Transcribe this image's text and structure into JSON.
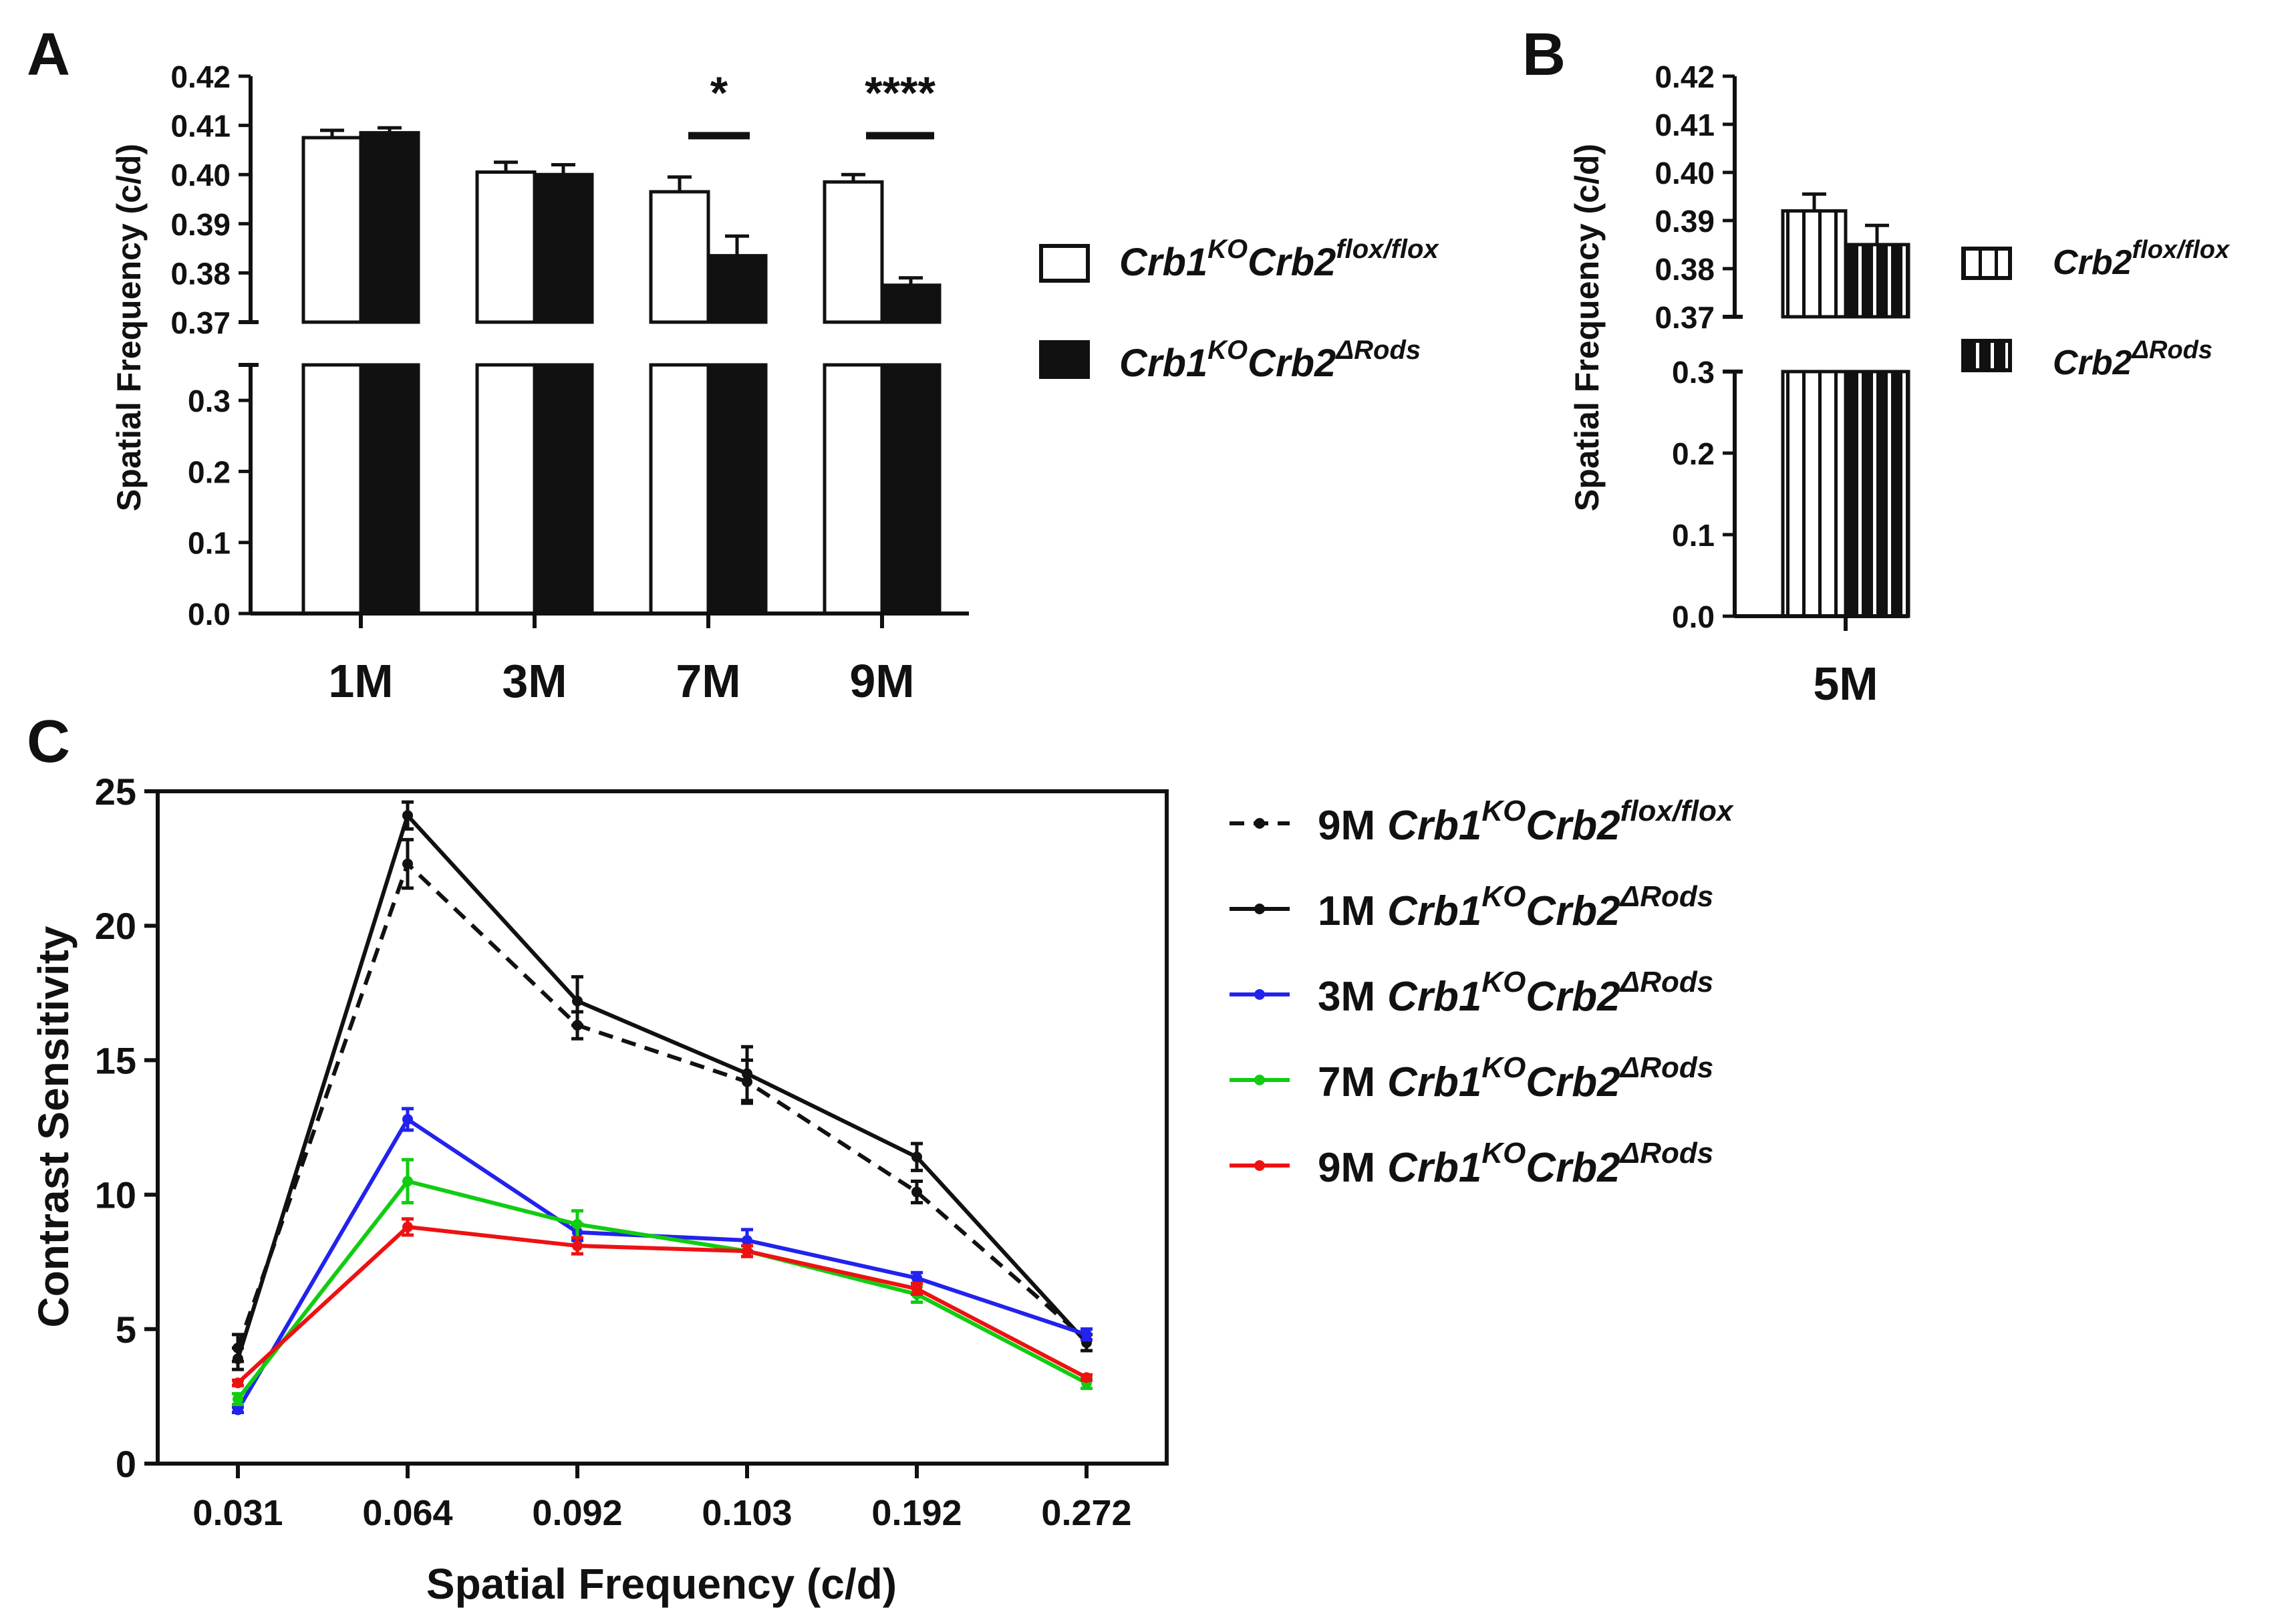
{
  "panel_labels": {
    "a": "A",
    "b": "B",
    "c": "C"
  },
  "significance": {
    "m7": "*",
    "m9": "****"
  },
  "colors": {
    "black": "#111111",
    "blue": "#2222ee",
    "green": "#11cc11",
    "red": "#ee1111",
    "white": "#ffffff"
  },
  "chart_data": [
    {
      "panel": "A",
      "type": "bar",
      "ylabel": "Spatial Frequency (c/d)",
      "categories": [
        "1M",
        "3M",
        "7M",
        "9M"
      ],
      "axis_break": true,
      "ylim_lower": [
        0,
        0.35
      ],
      "ylim_upper": [
        0.37,
        0.42
      ],
      "yticks_lower": [
        "0.0",
        "0.1",
        "0.2",
        "0.3"
      ],
      "yticks_upper": [
        "0.37",
        "0.38",
        "0.39",
        "0.40",
        "0.41",
        "0.42"
      ],
      "series": [
        {
          "name_base1": "Crb1",
          "name_sup1": "KO",
          "name_base2": "Crb2",
          "name_sup2": "flox/flox",
          "fill": "white",
          "values": [
            0.4075,
            0.4005,
            0.3965,
            0.3985
          ],
          "errors": [
            0.0015,
            0.002,
            0.003,
            0.0015
          ]
        },
        {
          "name_base1": "Crb1",
          "name_sup1": "KO",
          "name_base2": "Crb2",
          "name_sup2": "ΔRods",
          "fill": "black",
          "values": [
            0.4085,
            0.4,
            0.3835,
            0.3775
          ],
          "errors": [
            0.001,
            0.002,
            0.004,
            0.0015
          ]
        }
      ]
    },
    {
      "panel": "B",
      "type": "bar",
      "ylabel": "Spatial Frequency (c/d)",
      "categories": [
        "5M"
      ],
      "axis_break": true,
      "ylim_lower": [
        0,
        0.3
      ],
      "ylim_upper": [
        0.37,
        0.42
      ],
      "yticks_lower": [
        "0.0",
        "0.1",
        "0.2",
        "0.3"
      ],
      "yticks_upper": [
        "0.37",
        "0.38",
        "0.39",
        "0.40",
        "0.41",
        "0.42"
      ],
      "series": [
        {
          "name_base": "Crb2",
          "name_sup": "flox/flox",
          "fill": "white-striped",
          "values": [
            0.392
          ],
          "errors": [
            0.0035
          ]
        },
        {
          "name_base": "Crb2",
          "name_sup": "ΔRods",
          "fill": "black-striped",
          "values": [
            0.385
          ],
          "errors": [
            0.004
          ]
        }
      ]
    },
    {
      "panel": "C",
      "type": "line",
      "xlabel": "Spatial Frequency (c/d)",
      "ylabel": "Contrast Sensitivity",
      "x": [
        "0.031",
        "0.064",
        "0.092",
        "0.103",
        "0.192",
        "0.272"
      ],
      "ylim": [
        0,
        25
      ],
      "yticks": [
        "0",
        "5",
        "10",
        "15",
        "20",
        "25"
      ],
      "series": [
        {
          "prefix": "9M",
          "name_base1": "Crb1",
          "name_sup1": "KO",
          "name_base2": "Crb2",
          "name_sup2": "flox/flox",
          "color": "#111111",
          "dashed": true,
          "values": [
            4.3,
            22.3,
            16.3,
            14.2,
            10.1,
            4.6
          ],
          "errors": [
            0.5,
            0.9,
            0.5,
            0.8,
            0.4,
            0.4
          ]
        },
        {
          "prefix": "1M",
          "name_base1": "Crb1",
          "name_sup1": "KO",
          "name_base2": "Crb2",
          "name_sup2": "ΔRods",
          "color": "#111111",
          "dashed": false,
          "values": [
            3.9,
            24.1,
            17.2,
            14.5,
            11.4,
            4.5
          ],
          "errors": [
            0.4,
            0.5,
            0.9,
            1.0,
            0.5,
            0.3
          ]
        },
        {
          "prefix": "3M",
          "name_base1": "Crb1",
          "name_sup1": "KO",
          "name_base2": "Crb2",
          "name_sup2": "ΔRods",
          "color": "#2222ee",
          "dashed": false,
          "values": [
            2.0,
            12.8,
            8.6,
            8.3,
            6.9,
            4.8
          ],
          "errors": [
            0.1,
            0.4,
            0.3,
            0.4,
            0.2,
            0.2
          ]
        },
        {
          "prefix": "7M",
          "name_base1": "Crb1",
          "name_sup1": "KO",
          "name_base2": "Crb2",
          "name_sup2": "ΔRods",
          "color": "#11cc11",
          "dashed": false,
          "values": [
            2.4,
            10.5,
            8.9,
            7.9,
            6.3,
            3.0
          ],
          "errors": [
            0.2,
            0.8,
            0.5,
            0.2,
            0.3,
            0.2
          ]
        },
        {
          "prefix": "9M",
          "name_base1": "Crb1",
          "name_sup1": "KO",
          "name_base2": "Crb2",
          "name_sup2": "ΔRods",
          "color": "#ee1111",
          "dashed": false,
          "values": [
            3.0,
            8.8,
            8.1,
            7.9,
            6.5,
            3.2
          ],
          "errors": [
            0.1,
            0.3,
            0.3,
            0.2,
            0.2,
            0.1
          ]
        }
      ]
    }
  ]
}
